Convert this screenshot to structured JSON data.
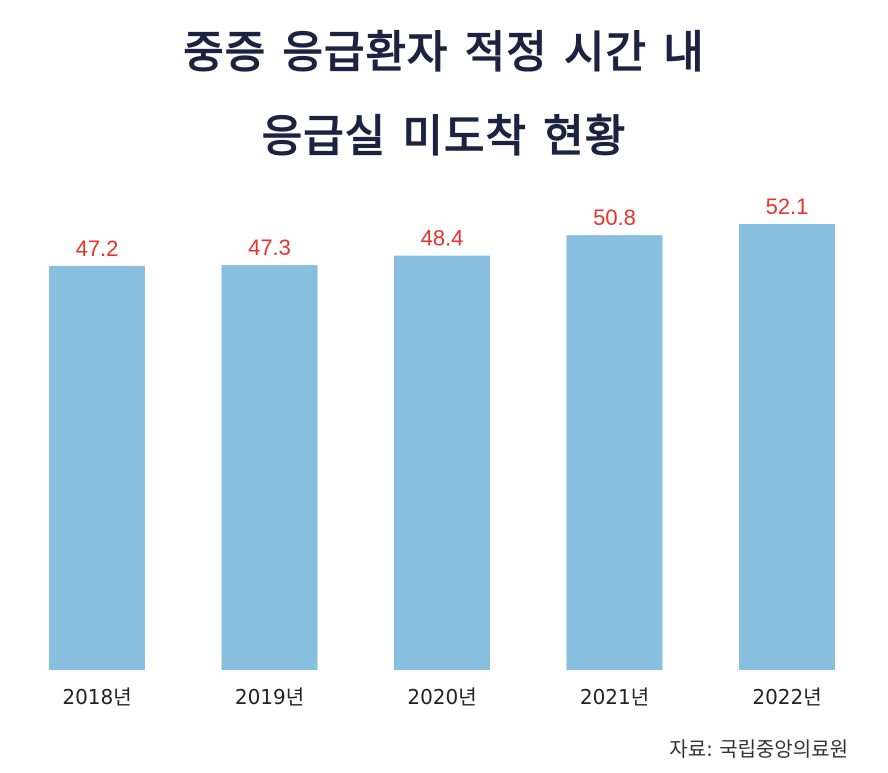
{
  "chart_data": {
    "type": "bar",
    "title_lines": [
      "중증 응급환자 적정 시간 내",
      "응급실 미도착 현황"
    ],
    "categories": [
      "2018년",
      "2019년",
      "2020년",
      "2021년",
      "2022년"
    ],
    "values": [
      47.2,
      47.3,
      48.4,
      50.8,
      52.1
    ],
    "value_labels": [
      "47.2",
      "47.3",
      "48.4",
      "50.8",
      "52.1"
    ],
    "xlabel": "",
    "ylabel": "",
    "ylim": [
      0,
      52.1
    ],
    "grid": false,
    "legend": "none",
    "bar_color": "#88bfdf",
    "label_color": "#e8332c",
    "source": "자료: 국립중앙의료원"
  },
  "colors": {
    "title": "#1c2340",
    "bar": "#88bfdf",
    "value_label": "#e8332c"
  }
}
